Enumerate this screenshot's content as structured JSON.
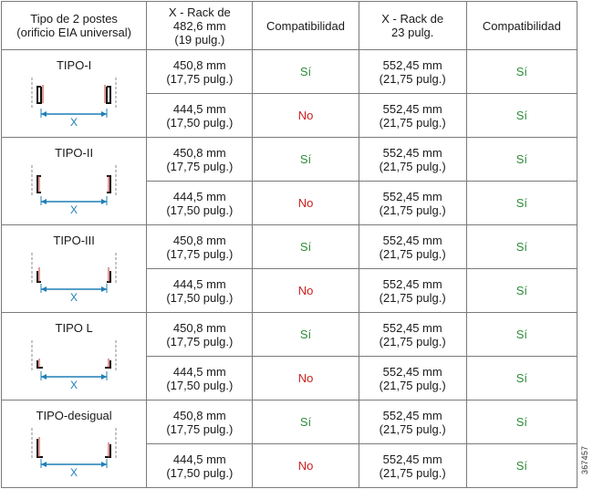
{
  "header": {
    "col1": [
      "Tipo de 2 postes",
      "(orificio EIA universal)"
    ],
    "col2": [
      "X - Rack de",
      "482,6 mm",
      "(19 pulg.)"
    ],
    "col3": "Compatibilidad",
    "col4": [
      "X - Rack de",
      "23 pulg."
    ],
    "col5": "Compatibilidad"
  },
  "diagram_axis_label": "X",
  "colors": {
    "yes": "#2e8b3a",
    "no": "#cc1f1f",
    "arrow": "#1f7fb5",
    "post": "#c0392b"
  },
  "rows": [
    {
      "type": "TIPO-I",
      "shape": "I",
      "sub": [
        {
          "x19": [
            "450,8 mm",
            "(17,75 pulg.)"
          ],
          "comp19": "Sí",
          "x23": [
            "552,45 mm",
            "(21,75 pulg.)"
          ],
          "comp23": "Sí"
        },
        {
          "x19": [
            "444,5 mm",
            "(17,50 pulg.)"
          ],
          "comp19": "No",
          "x23": [
            "552,45 mm",
            "(21,75 pulg.)"
          ],
          "comp23": "Sí"
        }
      ]
    },
    {
      "type": "TIPO-II",
      "shape": "II",
      "sub": [
        {
          "x19": [
            "450,8 mm",
            "(17,75 pulg.)"
          ],
          "comp19": "Sí",
          "x23": [
            "552,45 mm",
            "(21,75 pulg.)"
          ],
          "comp23": "Sí"
        },
        {
          "x19": [
            "444,5 mm",
            "(17,50 pulg.)"
          ],
          "comp19": "No",
          "x23": [
            "552,45 mm",
            "(21,75 pulg.)"
          ],
          "comp23": "Sí"
        }
      ]
    },
    {
      "type": "TIPO-III",
      "shape": "III",
      "sub": [
        {
          "x19": [
            "450,8 mm",
            "(17,75 pulg.)"
          ],
          "comp19": "Sí",
          "x23": [
            "552,45 mm",
            "(21,75 pulg.)"
          ],
          "comp23": "Sí"
        },
        {
          "x19": [
            "444,5 mm",
            "(17,50 pulg.)"
          ],
          "comp19": "No",
          "x23": [
            "552,45 mm",
            "(21,75 pulg.)"
          ],
          "comp23": "Sí"
        }
      ]
    },
    {
      "type": "TIPO L",
      "shape": "L",
      "sub": [
        {
          "x19": [
            "450,8 mm",
            "(17,75 pulg.)"
          ],
          "comp19": "Sí",
          "x23": [
            "552,45 mm",
            "(21,75 pulg.)"
          ],
          "comp23": "Sí"
        },
        {
          "x19": [
            "444,5 mm",
            "(17,50 pulg.)"
          ],
          "comp19": "No",
          "x23": [
            "552,45 mm",
            "(21,75 pulg.)"
          ],
          "comp23": "Sí"
        }
      ]
    },
    {
      "type": "TIPO-desigual",
      "shape": "uneven",
      "sub": [
        {
          "x19": [
            "450,8 mm",
            "(17,75 pulg.)"
          ],
          "comp19": "Sí",
          "x23": [
            "552,45 mm",
            "(21,75 pulg.)"
          ],
          "comp23": "Sí"
        },
        {
          "x19": [
            "444,5 mm",
            "(17,50 pulg.)"
          ],
          "comp19": "No",
          "x23": [
            "552,45 mm",
            "(21,75 pulg.)"
          ],
          "comp23": "Sí"
        }
      ]
    }
  ],
  "figure_id": "367457"
}
